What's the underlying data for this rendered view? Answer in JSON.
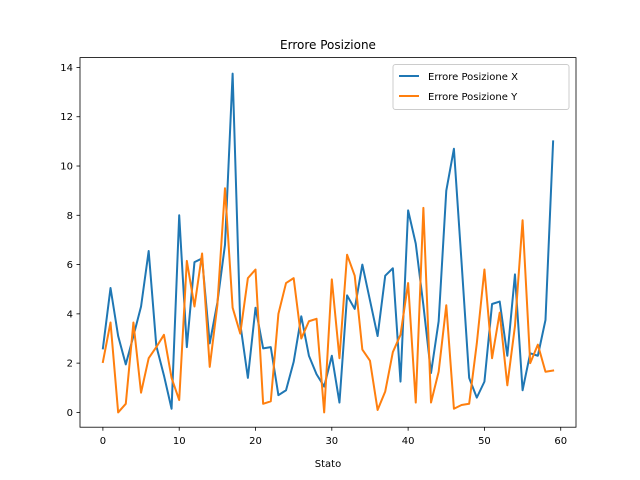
{
  "chart_data": {
    "type": "line",
    "title": "Errore Posizione",
    "xlabel": "Stato",
    "ylabel": "",
    "xlim": [
      -3,
      62
    ],
    "ylim": [
      -0.6,
      14.4
    ],
    "xticks": [
      0,
      10,
      20,
      30,
      40,
      50,
      60
    ],
    "yticks": [
      0,
      2,
      4,
      6,
      8,
      10,
      12,
      14
    ],
    "grid": false,
    "legend_position": "top-right",
    "x": [
      0,
      1,
      2,
      3,
      4,
      5,
      6,
      7,
      8,
      9,
      10,
      11,
      12,
      13,
      14,
      15,
      16,
      17,
      18,
      19,
      20,
      21,
      22,
      23,
      24,
      25,
      26,
      27,
      28,
      29,
      30,
      31,
      32,
      33,
      34,
      35,
      36,
      37,
      38,
      39,
      40,
      41,
      42,
      43,
      44,
      45,
      46,
      47,
      48,
      49,
      50,
      51,
      52,
      53,
      54,
      55,
      56,
      57,
      58,
      59
    ],
    "series": [
      {
        "name": "Errore Posizione X",
        "color": "#1f77b4",
        "values": [
          2.6,
          5.05,
          3.1,
          1.95,
          3.1,
          4.3,
          6.55,
          2.7,
          1.5,
          0.15,
          8.0,
          2.65,
          6.1,
          6.25,
          2.8,
          4.45,
          6.8,
          13.75,
          3.6,
          1.4,
          4.25,
          2.6,
          2.65,
          0.7,
          0.9,
          2.05,
          3.9,
          2.3,
          1.55,
          1.05,
          2.3,
          0.4,
          4.75,
          4.2,
          6.0,
          4.55,
          3.1,
          5.55,
          5.85,
          1.25,
          8.2,
          6.85,
          4.35,
          1.6,
          3.7,
          9.0,
          10.7,
          6.1,
          1.4,
          0.6,
          1.25,
          4.4,
          4.5,
          2.3,
          5.6,
          0.9,
          2.4,
          2.3,
          3.75,
          11.0
        ]
      },
      {
        "name": "Errore Posizione Y",
        "color": "#ff7f0e",
        "values": [
          2.05,
          3.65,
          0.0,
          0.35,
          3.65,
          0.8,
          2.2,
          2.65,
          3.15,
          1.4,
          0.5,
          6.15,
          4.3,
          6.45,
          1.85,
          4.35,
          9.1,
          4.25,
          3.2,
          5.45,
          5.8,
          0.35,
          0.45,
          4.0,
          5.25,
          5.45,
          3.0,
          3.7,
          3.8,
          0.0,
          5.4,
          2.2,
          6.4,
          5.55,
          2.55,
          2.1,
          0.1,
          0.85,
          2.45,
          3.15,
          5.25,
          0.4,
          8.3,
          0.4,
          1.65,
          4.35,
          0.15,
          0.3,
          0.35,
          2.8,
          5.8,
          2.2,
          4.05,
          1.1,
          3.5,
          7.8,
          2.0,
          2.75,
          1.65,
          1.7
        ]
      }
    ]
  }
}
